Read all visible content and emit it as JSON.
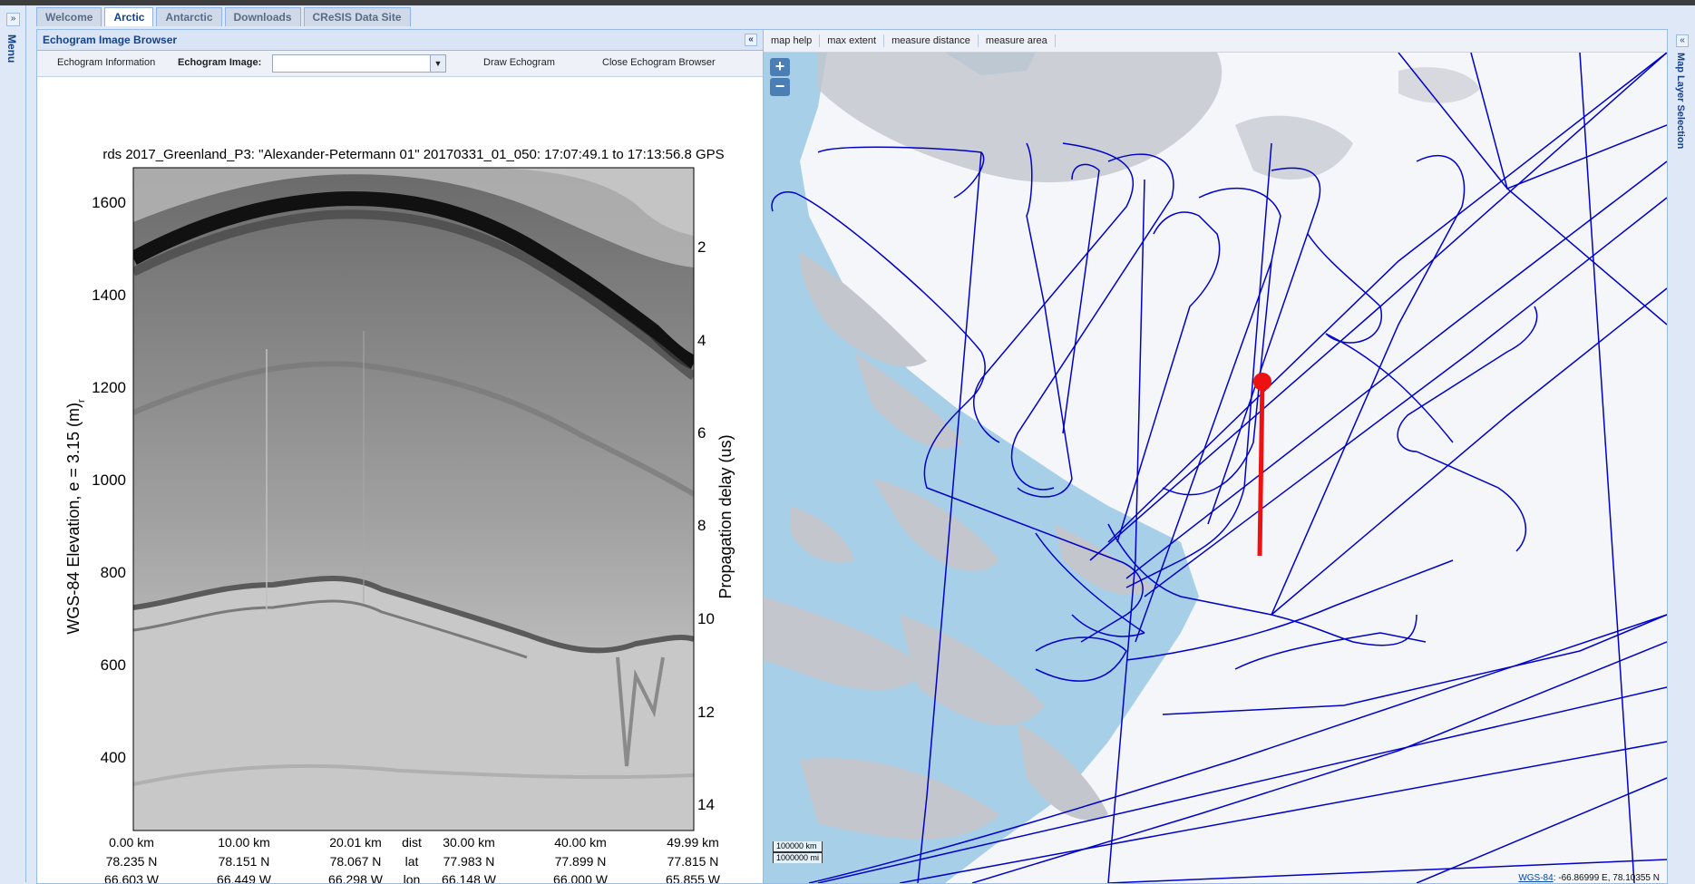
{
  "tabs": [
    {
      "label": "Welcome"
    },
    {
      "label": "Arctic"
    },
    {
      "label": "Antarctic"
    },
    {
      "label": "Downloads"
    },
    {
      "label": "CReSIS Data Site"
    }
  ],
  "side": {
    "menu_label": "Menu",
    "expand": "»",
    "collapse": "«",
    "map_layer_label": "Map Layer Selection"
  },
  "echogram_panel": {
    "title": "Echogram Image Browser",
    "toolbar": {
      "info": "Echogram Information",
      "image_label": "Echogram Image:",
      "draw": "Draw Echogram",
      "close": "Close Echogram Browser"
    },
    "plot_title": "rds 2017_Greenland_P3: \"Alexander-Petermann 01\"  20170331_01_050: 17:07:49.1 to 17:13:56.8 GPS",
    "ylabel": "WGS-84 Elevation, e = 3.15 (m)",
    "ylabel_sub": "r",
    "y2label": "Propagation delay (us)",
    "y_ticks": [
      "1600",
      "1400",
      "1200",
      "1000",
      "800",
      "600",
      "400"
    ],
    "y2_ticks": [
      "2",
      "4",
      "6",
      "8",
      "10",
      "12",
      "14"
    ],
    "x_rows": {
      "dist": [
        "0.00 km",
        "10.00 km",
        "20.01 km",
        "30.00 km",
        "40.00 km",
        "49.99 km"
      ],
      "lat": [
        "78.235 N",
        "78.151 N",
        "78.067 N",
        "77.983 N",
        "77.899 N",
        "77.815 N"
      ],
      "lon": [
        "66.603 W",
        "66.449 W",
        "66.298 W",
        "66.148 W",
        "66.000 W",
        "65.855 W"
      ],
      "row_labels": [
        "dist",
        "lat",
        "lon"
      ]
    }
  },
  "map_panel": {
    "toolbar": [
      "map help",
      "max extent",
      "measure distance",
      "measure area"
    ],
    "zoom_in": "+",
    "zoom_out": "−",
    "scale_km": "100000 km",
    "scale_mi": "1000000 mi",
    "coord_label": "WGS-84",
    "coord_value": ": -66.86999 E, 78.10355 N",
    "colors": {
      "track": "#0000c8",
      "selected": "#ee1111",
      "water": "#a7cfe8",
      "land": "#f4f6fa",
      "rock": "#b8bcc4"
    }
  }
}
